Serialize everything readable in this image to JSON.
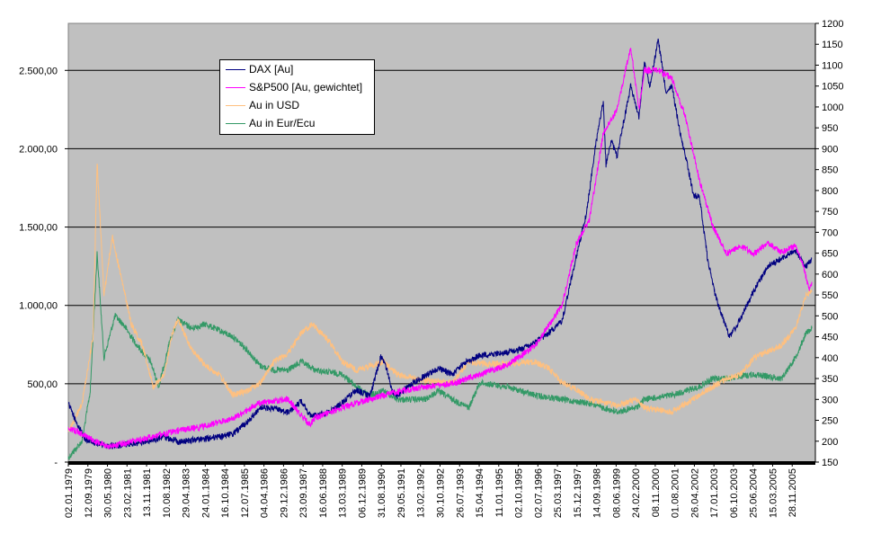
{
  "chart_data": {
    "type": "line",
    "title": "",
    "y_left": {
      "min": 0,
      "max": 2800,
      "ticks": [
        {
          "value": 0,
          "label": "-"
        },
        {
          "value": 500,
          "label": "500,00"
        },
        {
          "value": 1000,
          "label": "1.000,00"
        },
        {
          "value": 1500,
          "label": "1.500,00"
        },
        {
          "value": 2000,
          "label": "2.000,00"
        },
        {
          "value": 2500,
          "label": "2.500,00"
        }
      ]
    },
    "y_right": {
      "min": 150,
      "max": 1200,
      "step": 50,
      "ticks": [
        "150",
        "200",
        "250",
        "300",
        "350",
        "400",
        "450",
        "500",
        "550",
        "600",
        "650",
        "700",
        "750",
        "800",
        "850",
        "900",
        "950",
        "1000",
        "1050",
        "1100",
        "1150",
        "1200"
      ]
    },
    "x_start_year": 1979.0,
    "x_end_year": 2006.1,
    "x_tick_labels": [
      "02.01.1979",
      "12.09.1979",
      "30.05.1980",
      "23.02.1981",
      "13.11.1981",
      "10.08.1982",
      "29.04.1983",
      "24.01.1984",
      "16.10.1984",
      "12.07.1985",
      "04.04.1986",
      "29.12.1986",
      "23.09.1987",
      "16.06.1988",
      "13.03.1989",
      "06.12.1989",
      "31.08.1990",
      "29.05.1991",
      "13.02.1992",
      "30.10.1992",
      "26.07.1993",
      "15.04.1994",
      "11.01.1995",
      "02.10.1995",
      "02.07.1996",
      "25.03.1997",
      "15.12.1997",
      "14.09.1998",
      "08.06.1999",
      "24.02.2000",
      "08.11.2000",
      "01.08.2001",
      "26.04.2002",
      "17.01.2003",
      "06.10.2003",
      "25.06.2004",
      "15.03.2005",
      "28.11.2005"
    ],
    "grid_lines": [
      500,
      1000,
      1500,
      2000,
      2500
    ],
    "legend_position": "top-left",
    "series": [
      {
        "name": "DAX [Au]",
        "color": "#000080",
        "axis": "left",
        "x": [
          1979.0,
          1979.3,
          1979.6,
          1980.0,
          1980.5,
          1981.0,
          1981.5,
          1982.0,
          1982.5,
          1983.0,
          1983.5,
          1984.0,
          1984.5,
          1985.0,
          1985.5,
          1986.0,
          1986.5,
          1987.0,
          1987.5,
          1987.8,
          1988.0,
          1988.5,
          1989.0,
          1989.5,
          1990.0,
          1990.4,
          1990.6,
          1990.8,
          1991.0,
          1991.5,
          1992.0,
          1992.5,
          1993.0,
          1993.5,
          1994.0,
          1994.5,
          1995.0,
          1995.5,
          1996.0,
          1996.5,
          1997.0,
          1997.5,
          1997.9,
          1998.2,
          1998.5,
          1998.6,
          1998.8,
          1999.0,
          1999.5,
          1999.8,
          2000.0,
          2000.2,
          2000.5,
          2000.8,
          2001.0,
          2001.3,
          2001.5,
          2001.8,
          2002.0,
          2002.3,
          2002.6,
          2002.9,
          2003.1,
          2003.3,
          2003.6,
          2004.0,
          2004.5,
          2005.0,
          2005.5,
          2005.9,
          2006.1
        ],
        "y": [
          380,
          250,
          150,
          120,
          100,
          110,
          120,
          140,
          160,
          130,
          140,
          150,
          160,
          180,
          250,
          350,
          340,
          320,
          390,
          300,
          300,
          320,
          380,
          460,
          420,
          680,
          600,
          450,
          420,
          500,
          550,
          600,
          560,
          640,
          680,
          690,
          700,
          720,
          760,
          820,
          900,
          1300,
          1600,
          2000,
          2300,
          1900,
          2050,
          1950,
          2400,
          2200,
          2550,
          2400,
          2700,
          2350,
          2400,
          2100,
          1950,
          1700,
          1700,
          1300,
          1050,
          900,
          800,
          850,
          950,
          1100,
          1250,
          1300,
          1350,
          1250,
          1300
        ]
      },
      {
        "name": "S&P500 [Au, gewichtet]",
        "color": "#ff00ff",
        "axis": "left",
        "x": [
          1979.0,
          1979.5,
          1980.0,
          1980.5,
          1981.0,
          1982.0,
          1983.0,
          1984.0,
          1985.0,
          1986.0,
          1987.0,
          1987.8,
          1988.0,
          1989.0,
          1990.0,
          1991.0,
          1992.0,
          1993.0,
          1994.0,
          1995.0,
          1996.0,
          1997.0,
          1997.5,
          1998.0,
          1998.5,
          1999.0,
          1999.5,
          1999.8,
          2000.0,
          2000.5,
          2001.0,
          2001.5,
          2002.0,
          2002.5,
          2003.0,
          2003.5,
          2004.0,
          2004.5,
          2005.0,
          2005.5,
          2005.8,
          2006.0,
          2006.1
        ],
        "y": [
          220,
          180,
          130,
          100,
          120,
          160,
          200,
          230,
          280,
          380,
          400,
          240,
          280,
          350,
          400,
          450,
          480,
          500,
          560,
          620,
          740,
          1000,
          1380,
          1550,
          2100,
          2250,
          2650,
          2250,
          2500,
          2500,
          2450,
          2200,
          1800,
          1500,
          1330,
          1380,
          1330,
          1400,
          1340,
          1380,
          1250,
          1100,
          1150
        ]
      },
      {
        "name": "Au in USD",
        "color": "#ffc07f",
        "axis": "right",
        "x": [
          1979.0,
          1979.5,
          1979.9,
          1980.05,
          1980.3,
          1980.6,
          1980.9,
          1981.3,
          1981.7,
          1982.1,
          1982.5,
          1982.8,
          1983.0,
          1983.5,
          1984.0,
          1984.5,
          1985.0,
          1985.5,
          1986.0,
          1986.5,
          1987.0,
          1987.5,
          1987.9,
          1988.5,
          1989.0,
          1989.5,
          1990.0,
          1990.5,
          1991.0,
          1992.0,
          1993.0,
          1993.6,
          1994.0,
          1995.0,
          1996.0,
          1996.5,
          1997.0,
          1997.5,
          1998.0,
          1999.0,
          1999.7,
          2000.0,
          2001.0,
          2002.0,
          2002.5,
          2003.0,
          2003.5,
          2004.0,
          2005.0,
          2005.5,
          2005.9,
          2006.1
        ],
        "y": [
          220,
          290,
          450,
          870,
          550,
          690,
          600,
          480,
          430,
          330,
          360,
          460,
          490,
          420,
          380,
          360,
          310,
          320,
          340,
          390,
          410,
          460,
          480,
          440,
          390,
          370,
          380,
          390,
          360,
          345,
          340,
          390,
          385,
          385,
          390,
          375,
          340,
          325,
          300,
          285,
          300,
          280,
          270,
          310,
          330,
          350,
          360,
          400,
          430,
          470,
          550,
          560
        ]
      },
      {
        "name": "Au in Eur/Ecu",
        "color": "#339966",
        "axis": "right",
        "x": [
          1979.0,
          1979.5,
          1979.8,
          1980.05,
          1980.3,
          1980.7,
          1981.0,
          1981.5,
          1982.0,
          1982.3,
          1982.7,
          1983.0,
          1983.5,
          1984.0,
          1985.0,
          1985.5,
          1986.0,
          1986.5,
          1987.0,
          1987.5,
          1988.0,
          1989.0,
          1989.5,
          1990.0,
          1990.5,
          1991.0,
          1992.0,
          1992.5,
          1993.0,
          1993.6,
          1994.0,
          1995.0,
          1996.0,
          1997.0,
          1998.0,
          1999.0,
          1999.7,
          2000.0,
          2001.0,
          2002.0,
          2002.5,
          2003.0,
          2004.0,
          2005.0,
          2005.5,
          2005.9,
          2006.1
        ],
        "y": [
          160,
          200,
          320,
          650,
          400,
          500,
          480,
          430,
          390,
          330,
          440,
          490,
          470,
          480,
          450,
          420,
          380,
          370,
          370,
          390,
          370,
          360,
          330,
          310,
          320,
          300,
          300,
          320,
          300,
          280,
          340,
          330,
          310,
          300,
          290,
          270,
          280,
          300,
          310,
          330,
          350,
          350,
          360,
          350,
          400,
          460,
          470
        ]
      }
    ]
  }
}
